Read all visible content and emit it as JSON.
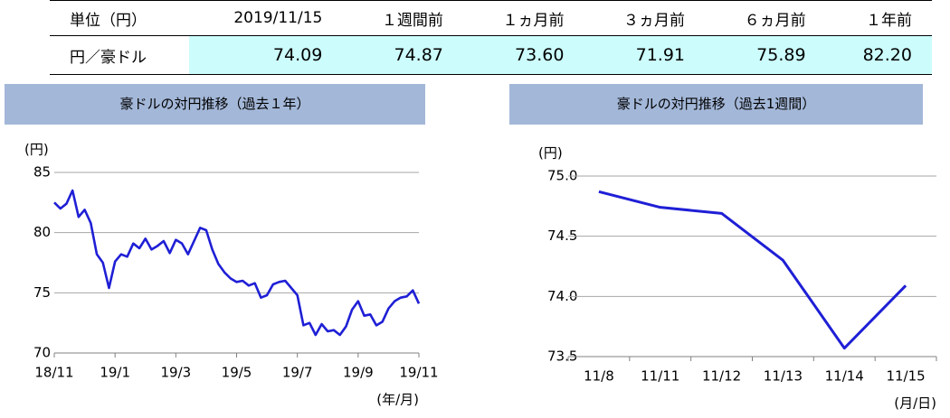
{
  "table": {
    "header": [
      "単位（円）",
      "2019/11/15",
      "１週間前",
      "１ヵ月前",
      "３ヵ月前",
      "６ヵ月前",
      "１年前"
    ],
    "rows": [
      [
        "円／豪ドル",
        "74.09",
        "74.87",
        "73.60",
        "71.91",
        "75.89",
        "82.20"
      ]
    ]
  },
  "chart_data": [
    {
      "type": "line",
      "title": "豪ドルの対円推移（過去１年）",
      "y_unit": "(円)",
      "x_unit": "(年/月)",
      "categories": [
        "18/11",
        null,
        null,
        null,
        null,
        null,
        null,
        null,
        null,
        null,
        "19/1",
        null,
        null,
        null,
        null,
        null,
        null,
        null,
        null,
        null,
        "19/3",
        null,
        null,
        null,
        null,
        null,
        null,
        null,
        null,
        null,
        "19/5",
        null,
        null,
        null,
        null,
        null,
        null,
        null,
        null,
        null,
        "19/7",
        null,
        null,
        null,
        null,
        null,
        null,
        null,
        null,
        null,
        "19/9",
        null,
        null,
        null,
        null,
        null,
        null,
        null,
        null,
        null,
        "19/11"
      ],
      "series": [
        {
          "color": "#1f1fd6",
          "values": [
            82.5,
            82.0,
            82.4,
            83.5,
            81.3,
            81.9,
            80.8,
            78.2,
            77.5,
            75.4,
            77.6,
            78.2,
            78.0,
            79.1,
            78.7,
            79.5,
            78.6,
            78.9,
            79.3,
            78.3,
            79.4,
            79.1,
            78.2,
            79.3,
            80.4,
            80.2,
            78.6,
            77.4,
            76.7,
            76.2,
            75.9,
            76.0,
            75.6,
            75.8,
            74.6,
            74.8,
            75.7,
            75.9,
            76.0,
            75.4,
            74.8,
            72.3,
            72.5,
            71.5,
            72.4,
            71.8,
            71.9,
            71.5,
            72.2,
            73.6,
            74.3,
            73.1,
            73.2,
            72.3,
            72.6,
            73.7,
            74.3,
            74.6,
            74.7,
            75.2,
            74.1
          ]
        }
      ],
      "ylim": [
        70,
        85
      ],
      "yticks": [
        70,
        75,
        80,
        85
      ],
      "grid": true
    },
    {
      "type": "line",
      "title": "豪ドルの対円推移（過去1週間）",
      "y_unit": "(円)",
      "x_unit": "(月/日)",
      "categories": [
        "11/8",
        "11/11",
        "11/12",
        "11/13",
        "11/14",
        "11/15"
      ],
      "series": [
        {
          "color": "#1f1fd6",
          "values": [
            74.87,
            74.74,
            74.69,
            74.3,
            73.57,
            74.09
          ]
        }
      ],
      "ylim": [
        73.5,
        75.0
      ],
      "yticks": [
        73.5,
        {
          "value": 74.0,
          "label": "74.0"
        },
        74.5,
        {
          "value": 75.0,
          "label": "75.0"
        }
      ],
      "grid": true
    }
  ]
}
